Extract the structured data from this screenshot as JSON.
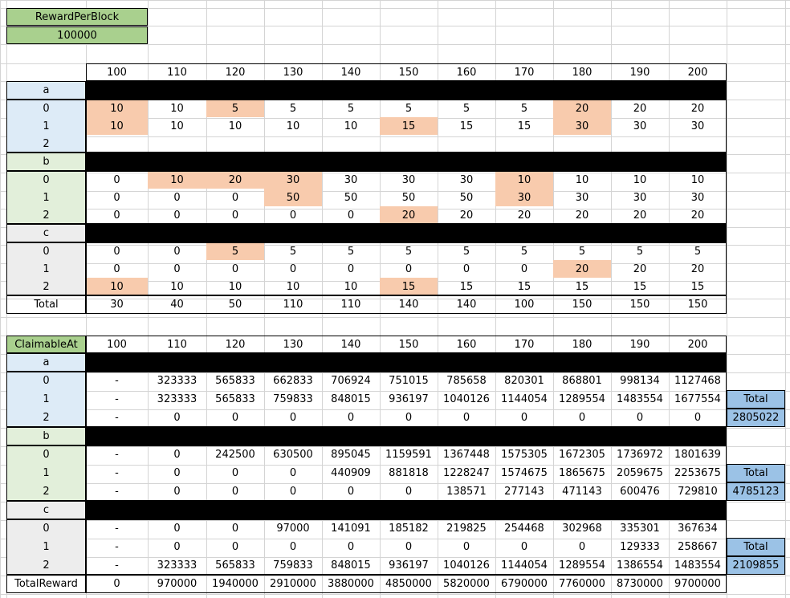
{
  "colors": {
    "green_header": "#a9d08e",
    "blue_label": "#ddebf7",
    "green_label": "#e2efda",
    "gray_label": "#ededed",
    "highlight": "#f8cbad",
    "total_blue": "#9bc2e6",
    "black_bar": "#000000"
  },
  "reward": {
    "label": "RewardPerBlock",
    "value": "100000"
  },
  "columns": [
    "100",
    "110",
    "120",
    "130",
    "140",
    "150",
    "160",
    "170",
    "180",
    "190",
    "200"
  ],
  "top": {
    "groups": [
      {
        "name": "a",
        "labels": [
          "0",
          "1",
          "2"
        ],
        "rows": [
          [
            "10",
            "10",
            "5",
            "5",
            "5",
            "5",
            "5",
            "5",
            "20",
            "20",
            "20"
          ],
          [
            "10",
            "10",
            "10",
            "10",
            "10",
            "15",
            "15",
            "15",
            "30",
            "30",
            "30"
          ],
          [
            "",
            "",
            "",
            "",
            "",
            "",
            "",
            "",
            "",
            "",
            ""
          ]
        ]
      },
      {
        "name": "b",
        "labels": [
          "0",
          "1",
          "2"
        ],
        "rows": [
          [
            "0",
            "10",
            "20",
            "30",
            "30",
            "30",
            "30",
            "10",
            "10",
            "10",
            "10"
          ],
          [
            "0",
            "0",
            "0",
            "50",
            "50",
            "50",
            "50",
            "30",
            "30",
            "30",
            "30"
          ],
          [
            "0",
            "0",
            "0",
            "0",
            "0",
            "20",
            "20",
            "20",
            "20",
            "20",
            "20"
          ]
        ]
      },
      {
        "name": "c",
        "labels": [
          "0",
          "1",
          "2"
        ],
        "rows": [
          [
            "0",
            "0",
            "5",
            "5",
            "5",
            "5",
            "5",
            "5",
            "5",
            "5",
            "5"
          ],
          [
            "0",
            "0",
            "0",
            "0",
            "0",
            "0",
            "0",
            "0",
            "20",
            "20",
            "20"
          ],
          [
            "10",
            "10",
            "10",
            "10",
            "10",
            "15",
            "15",
            "15",
            "15",
            "15",
            "15"
          ]
        ]
      }
    ],
    "total": {
      "label": "Total",
      "values": [
        "30",
        "40",
        "50",
        "110",
        "110",
        "140",
        "140",
        "100",
        "150",
        "150",
        "150"
      ]
    }
  },
  "bottom": {
    "header": "ClaimableAt",
    "groups": [
      {
        "name": "a",
        "labels": [
          "0",
          "1",
          "2"
        ],
        "rows": [
          [
            "-",
            "323333",
            "565833",
            "662833",
            "706924",
            "751015",
            "785658",
            "820301",
            "868801",
            "998134",
            "1127468"
          ],
          [
            "-",
            "323333",
            "565833",
            "759833",
            "848015",
            "936197",
            "1040126",
            "1144054",
            "1289554",
            "1483554",
            "1677554"
          ],
          [
            "-",
            "0",
            "0",
            "0",
            "0",
            "0",
            "0",
            "0",
            "0",
            "0",
            "0"
          ]
        ],
        "total_label": "Total",
        "total_value": "2805022"
      },
      {
        "name": "b",
        "labels": [
          "0",
          "1",
          "2"
        ],
        "rows": [
          [
            "-",
            "0",
            "242500",
            "630500",
            "895045",
            "1159591",
            "1367448",
            "1575305",
            "1672305",
            "1736972",
            "1801639"
          ],
          [
            "-",
            "0",
            "0",
            "0",
            "440909",
            "881818",
            "1228247",
            "1574675",
            "1865675",
            "2059675",
            "2253675"
          ],
          [
            "-",
            "0",
            "0",
            "0",
            "0",
            "0",
            "138571",
            "277143",
            "471143",
            "600476",
            "729810"
          ]
        ],
        "total_label": "Total",
        "total_value": "4785123"
      },
      {
        "name": "c",
        "labels": [
          "0",
          "1",
          "2"
        ],
        "rows": [
          [
            "-",
            "0",
            "0",
            "97000",
            "141091",
            "185182",
            "219825",
            "254468",
            "302968",
            "335301",
            "367634"
          ],
          [
            "-",
            "0",
            "0",
            "0",
            "0",
            "0",
            "0",
            "0",
            "0",
            "129333",
            "258667"
          ],
          [
            "-",
            "323333",
            "565833",
            "759833",
            "848015",
            "936197",
            "1040126",
            "1144054",
            "1289554",
            "1386554",
            "1483554"
          ]
        ],
        "total_label": "Total",
        "total_value": "2109855"
      }
    ],
    "total": {
      "label": "TotalReward",
      "values": [
        "0",
        "970000",
        "1940000",
        "2910000",
        "3880000",
        "4850000",
        "5820000",
        "6790000",
        "7760000",
        "8730000",
        "9700000"
      ]
    }
  }
}
